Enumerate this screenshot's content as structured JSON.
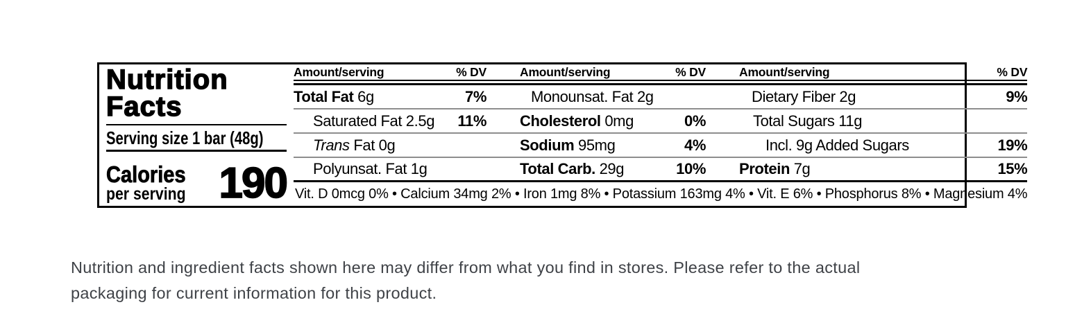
{
  "colors": {
    "label_border": "#000000",
    "separator_gray": "#8d8d8d",
    "disclaimer_text": "#3f4247"
  },
  "panel": {
    "title_line1": "Nutrition",
    "title_line2": "Facts",
    "serving": "Serving size 1 bar (48g)",
    "calories_label": "Calories",
    "calories_sub": "per serving",
    "calories_value": "190"
  },
  "table": {
    "header": {
      "amount": "Amount/serving",
      "dv": "% DV"
    },
    "rows": [
      {
        "c1": {
          "b": "Total Fat",
          "t": " 6g",
          "dv": "7%"
        },
        "c2": {
          "t": "Monounsat. Fat 2g",
          "dv": ""
        },
        "c3": {
          "t": "Dietary Fiber 2g",
          "dv": "9%"
        }
      },
      {
        "c1": {
          "t": "Saturated Fat 2.5g",
          "dv": "11%"
        },
        "c2": {
          "b": "Cholesterol",
          "t": " 0mg",
          "dv": "0%"
        },
        "c3": {
          "t": "Total Sugars 11g",
          "dv": ""
        }
      },
      {
        "c1": {
          "i": "Trans",
          "t": " Fat 0g",
          "dv": ""
        },
        "c2": {
          "b": "Sodium",
          "t": " 95mg",
          "dv": "4%"
        },
        "c3": {
          "t": "Incl. 9g Added Sugars",
          "dv": "19%"
        }
      },
      {
        "c1": {
          "t": "Polyunsat. Fat 1g",
          "dv": ""
        },
        "c2": {
          "b": "Total Carb.",
          "t": " 29g",
          "dv": "10%"
        },
        "c3": {
          "b": "Protein",
          "t": " 7g",
          "dv": "15%"
        }
      }
    ],
    "micronutrients": "Vit. D 0mcg 0% • Calcium 34mg 2% • Iron 1mg 8% • Potassium 163mg 4% • Vit. E 6% • Phosphorus 8% • Magnesium 4%"
  },
  "disclaimer": {
    "line1": "Nutrition and ingredient facts shown here may differ from what you find in stores. Please refer to the actual",
    "line2": "packaging for current information for this product."
  }
}
